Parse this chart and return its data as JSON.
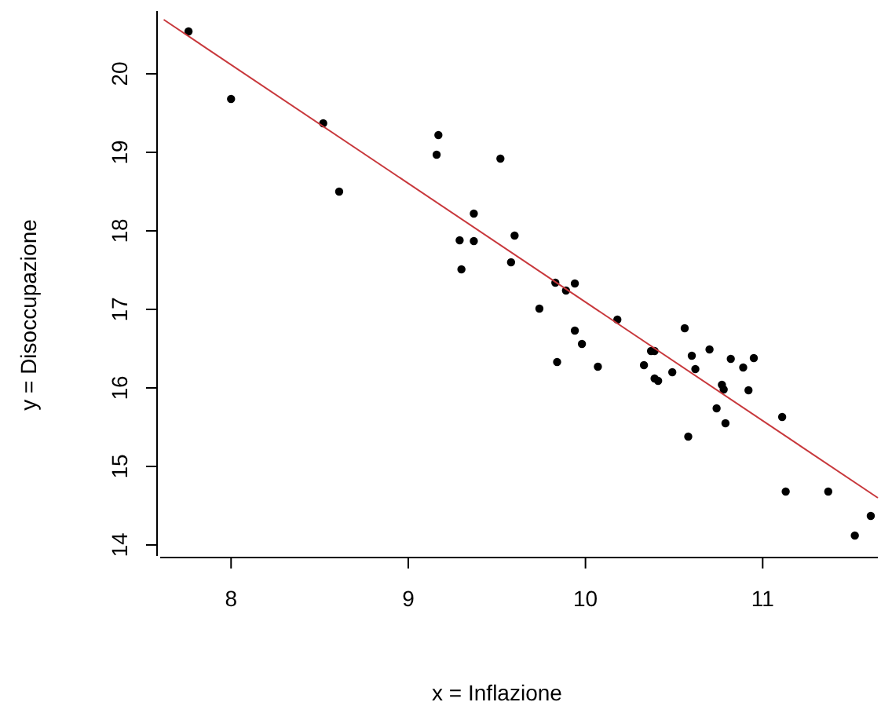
{
  "chart_data": {
    "type": "scatter",
    "xlabel": "x = Inflazione",
    "ylabel": "y = Disoccupazione",
    "xlim": [
      7.6,
      11.65
    ],
    "ylim": [
      13.86,
      20.8
    ],
    "xticks": [
      8,
      9,
      10,
      11
    ],
    "yticks": [
      14,
      15,
      16,
      17,
      18,
      19,
      20
    ],
    "grid": false,
    "marker": "circle",
    "series": [
      {
        "color": "#000000",
        "x": [
          7.76,
          8.0,
          8.52,
          8.61,
          9.17,
          9.16,
          9.52,
          9.37,
          9.29,
          9.37,
          9.3,
          9.6,
          9.58,
          9.83,
          9.94,
          9.89,
          9.74,
          10.18,
          9.94,
          9.98,
          9.84,
          10.07,
          10.56,
          10.37,
          10.39,
          10.33,
          10.6,
          10.7,
          10.39,
          10.41,
          10.49,
          10.62,
          10.82,
          10.89,
          10.95,
          10.77,
          10.78,
          10.92,
          10.74,
          10.79,
          10.58,
          11.11,
          11.13,
          11.37,
          11.61,
          11.52
        ],
        "values": [
          20.54,
          19.68,
          19.37,
          18.5,
          19.22,
          18.97,
          18.92,
          18.22,
          17.88,
          17.87,
          17.51,
          17.94,
          17.6,
          17.34,
          17.33,
          17.24,
          17.01,
          16.87,
          16.73,
          16.56,
          16.33,
          16.27,
          16.76,
          16.47,
          16.47,
          16.29,
          16.41,
          16.49,
          16.12,
          16.09,
          16.2,
          16.24,
          16.37,
          16.26,
          16.38,
          16.04,
          15.98,
          15.97,
          15.74,
          15.55,
          15.38,
          15.63,
          14.68,
          14.68,
          14.37,
          14.12
        ]
      },
      {
        "type": "line",
        "color": "#c8383c",
        "line_style": "solid",
        "marker": "none",
        "x": [
          7.62,
          11.65
        ],
        "values": [
          20.69,
          14.6
        ]
      }
    ]
  }
}
